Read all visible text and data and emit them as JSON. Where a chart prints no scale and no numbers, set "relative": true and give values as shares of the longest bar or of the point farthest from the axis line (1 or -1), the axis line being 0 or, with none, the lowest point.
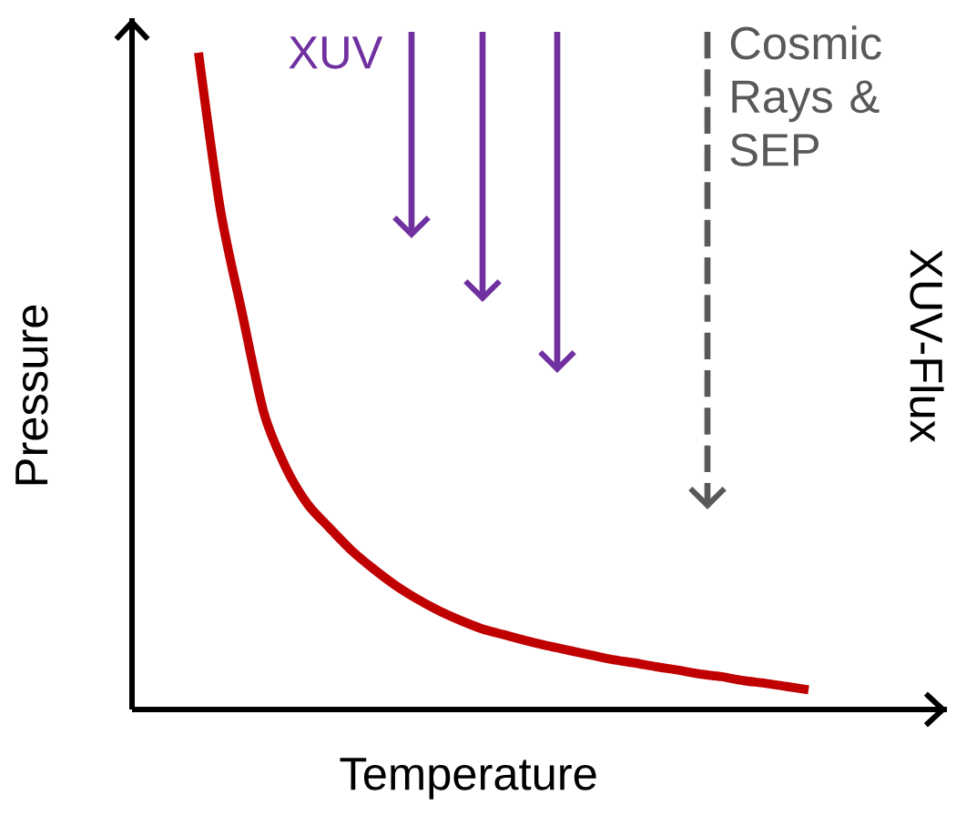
{
  "chart_data": {
    "type": "line",
    "relative": true,
    "xlabel": "Temperature",
    "ylabel": "Pressure",
    "y2label": "XUV-Flux",
    "categories": [
      null,
      null,
      null,
      null,
      null,
      null,
      null,
      null,
      null,
      null,
      null,
      null,
      null,
      null,
      null,
      null,
      null,
      null,
      null,
      null,
      null,
      null,
      null,
      null,
      null,
      null,
      null,
      null,
      null
    ],
    "series": [
      {
        "color": "#c00000",
        "values": [
          1.0,
          0.762,
          0.604,
          0.452,
          0.369,
          0.313,
          0.277,
          0.243,
          0.215,
          0.19,
          0.169,
          0.151,
          0.136,
          0.123,
          0.114,
          0.105,
          0.097,
          0.09,
          0.083,
          0.076,
          0.071,
          0.065,
          0.06,
          0.054,
          0.05,
          0.044,
          0.04,
          0.035,
          0.03
        ]
      }
    ],
    "marker": "none",
    "line_style": "solid",
    "annotations": [
      "XUV",
      "Cosmic Rays & SEP"
    ]
  }
}
